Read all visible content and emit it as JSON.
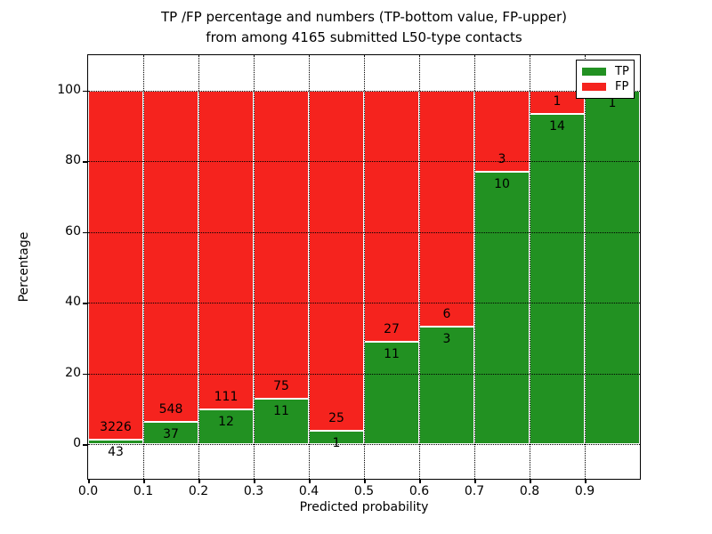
{
  "title": {
    "line1": "TP /FP percentage and numbers (TP-bottom value, FP-upper)",
    "line2": "from among 4165 submitted L50-type contacts"
  },
  "axes": {
    "xlabel": "Predicted probability",
    "ylabel": "Percentage",
    "xtick_labels": [
      "0.0",
      "0.1",
      "0.2",
      "0.3",
      "0.4",
      "0.5",
      "0.6",
      "0.7",
      "0.8",
      "0.9"
    ],
    "ytick_labels": [
      "0",
      "20",
      "40",
      "60",
      "80",
      "100"
    ],
    "ytick_values": [
      0,
      20,
      40,
      60,
      80,
      100
    ],
    "xlim": [
      0.0,
      1.0
    ],
    "ylim": [
      -10,
      110
    ],
    "grid": "dotted"
  },
  "legend": {
    "position": "upper right",
    "items": [
      {
        "label": "TP",
        "color": "#229122"
      },
      {
        "label": "FP",
        "color": "#f5231e"
      }
    ]
  },
  "colors": {
    "tp": "#229122",
    "fp": "#f5231e",
    "bar_edge": "#ffffff",
    "grid": "#000000"
  },
  "chart_data": {
    "type": "bar",
    "stacked": true,
    "title": "TP /FP percentage and numbers (TP-bottom value, FP-upper) from among 4165 submitted L50-type contacts",
    "xlabel": "Predicted probability",
    "ylabel": "Percentage",
    "total_submitted_contacts": 4165,
    "x_bins": [
      "0.0-0.1",
      "0.1-0.2",
      "0.2-0.3",
      "0.3-0.4",
      "0.4-0.5",
      "0.5-0.6",
      "0.6-0.7",
      "0.7-0.8",
      "0.8-0.9",
      "0.9-1.0"
    ],
    "series": [
      {
        "name": "TP",
        "counts": [
          43,
          37,
          12,
          11,
          1,
          11,
          3,
          10,
          14,
          1
        ],
        "percents": [
          1.32,
          6.32,
          9.76,
          12.79,
          3.85,
          28.95,
          33.33,
          76.92,
          93.33,
          100.0
        ]
      },
      {
        "name": "FP",
        "counts": [
          3226,
          548,
          111,
          75,
          25,
          27,
          6,
          3,
          1,
          0
        ],
        "percents": [
          98.68,
          93.68,
          90.24,
          87.21,
          96.15,
          71.05,
          66.67,
          23.08,
          6.67,
          0.0
        ]
      }
    ],
    "bar_value_labels": {
      "fp": [
        "3226",
        "548",
        "111",
        "75",
        "25",
        "27",
        "6",
        "3",
        "1",
        ""
      ],
      "tp": [
        "43",
        "37",
        "12",
        "11",
        "1",
        "11",
        "3",
        "10",
        "14",
        "1"
      ]
    }
  }
}
